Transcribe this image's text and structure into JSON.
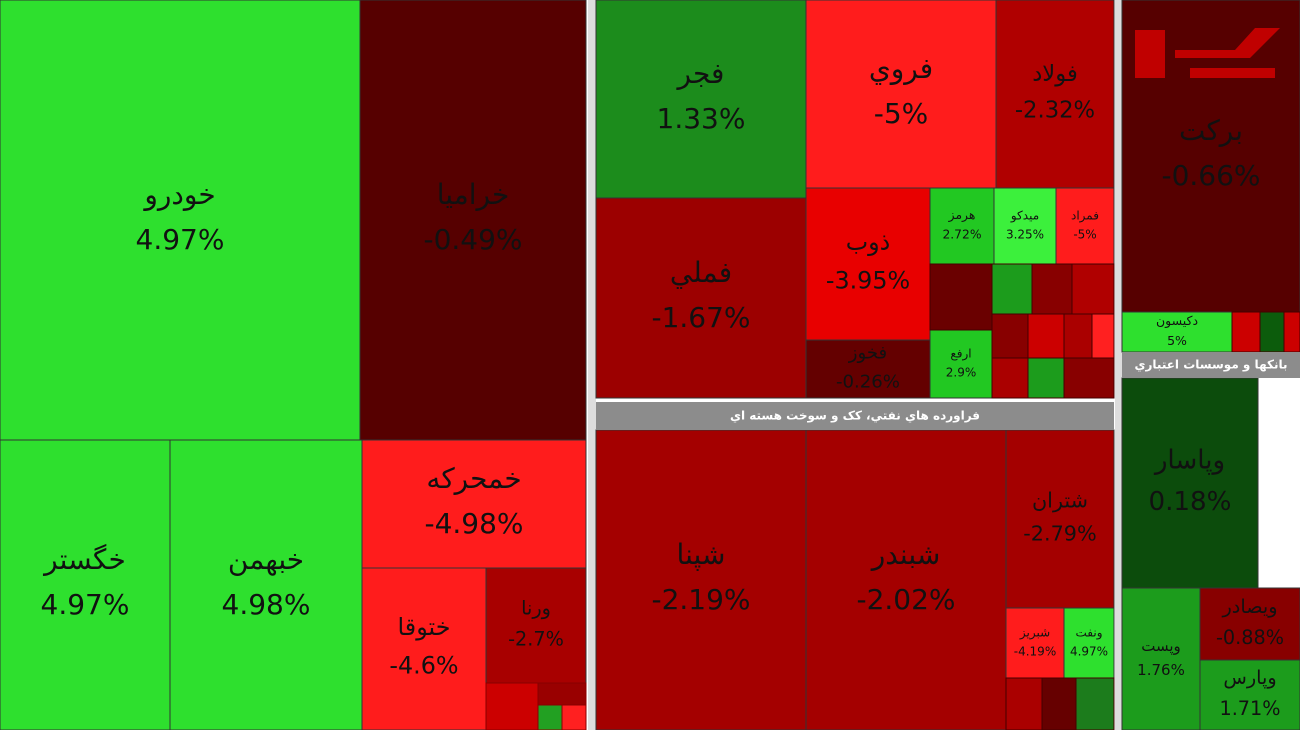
{
  "sectors": [
    {
      "title": "فراورده هاي نفتي، كک و سوخت هسته اي"
    },
    {
      "title": "بانکها و موسسات اعتباري"
    }
  ],
  "tiles": [
    {
      "name": "خودرو",
      "change": "4.97%",
      "color": "#2ee02e"
    },
    {
      "name": "خراميا",
      "change": "-0.49%",
      "color": "#560000"
    },
    {
      "name": "خگستر",
      "change": "4.97%",
      "color": "#2ee02e"
    },
    {
      "name": "خبهمن",
      "change": "4.98%",
      "color": "#2ee02e"
    },
    {
      "name": "خمحرکه",
      "change": "-4.98%",
      "color": "#ff1c1c"
    },
    {
      "name": "ختوقا",
      "change": "-4.6%",
      "color": "#ff1c1c"
    },
    {
      "name": "ورنا",
      "change": "-2.7%",
      "color": "#a80000"
    },
    {
      "name": "فجر",
      "change": "1.33%",
      "color": "#1c8c1c"
    },
    {
      "name": "فملي",
      "change": "-1.67%",
      "color": "#9c0000"
    },
    {
      "name": "فروي",
      "change": "-5%",
      "color": "#ff1c1c"
    },
    {
      "name": "فولاد",
      "change": "-2.32%",
      "color": "#b00000"
    },
    {
      "name": "ذوب",
      "change": "-3.95%",
      "color": "#e80000"
    },
    {
      "name": "فخوز",
      "change": "-0.26%",
      "color": "#640000"
    },
    {
      "name": "هرمز",
      "change": "2.72%",
      "color": "#22c822"
    },
    {
      "name": "ميدکو",
      "change": "3.25%",
      "color": "#3cf03c"
    },
    {
      "name": "فمراد",
      "change": "-5%",
      "color": "#ff1c1c"
    },
    {
      "name": "ارفع",
      "change": "2.9%",
      "color": "#22c822"
    },
    {
      "name": "شپنا",
      "change": "-2.19%",
      "color": "#a40000"
    },
    {
      "name": "شبندر",
      "change": "-2.02%",
      "color": "#a40000"
    },
    {
      "name": "شتران",
      "change": "-2.79%",
      "color": "#a40000"
    },
    {
      "name": "شبريز",
      "change": "-4.19%",
      "color": "#ff1c1c"
    },
    {
      "name": "ونفت",
      "change": "4.97%",
      "color": "#2ee02e"
    },
    {
      "name": "برکت",
      "change": "-0.66%",
      "color": "#560000"
    },
    {
      "name": "دکيسون",
      "change": "5%",
      "color": "#2ee02e"
    },
    {
      "name": "وپاسار",
      "change": "0.18%",
      "color": "#0c4c0c"
    },
    {
      "name": "ويصادر",
      "change": "-0.88%",
      "color": "#880000"
    },
    {
      "name": "وپست",
      "change": "1.76%",
      "color": "#1c9c1c"
    },
    {
      "name": "وپارس",
      "change": "1.71%",
      "color": "#1c9c1c"
    }
  ]
}
